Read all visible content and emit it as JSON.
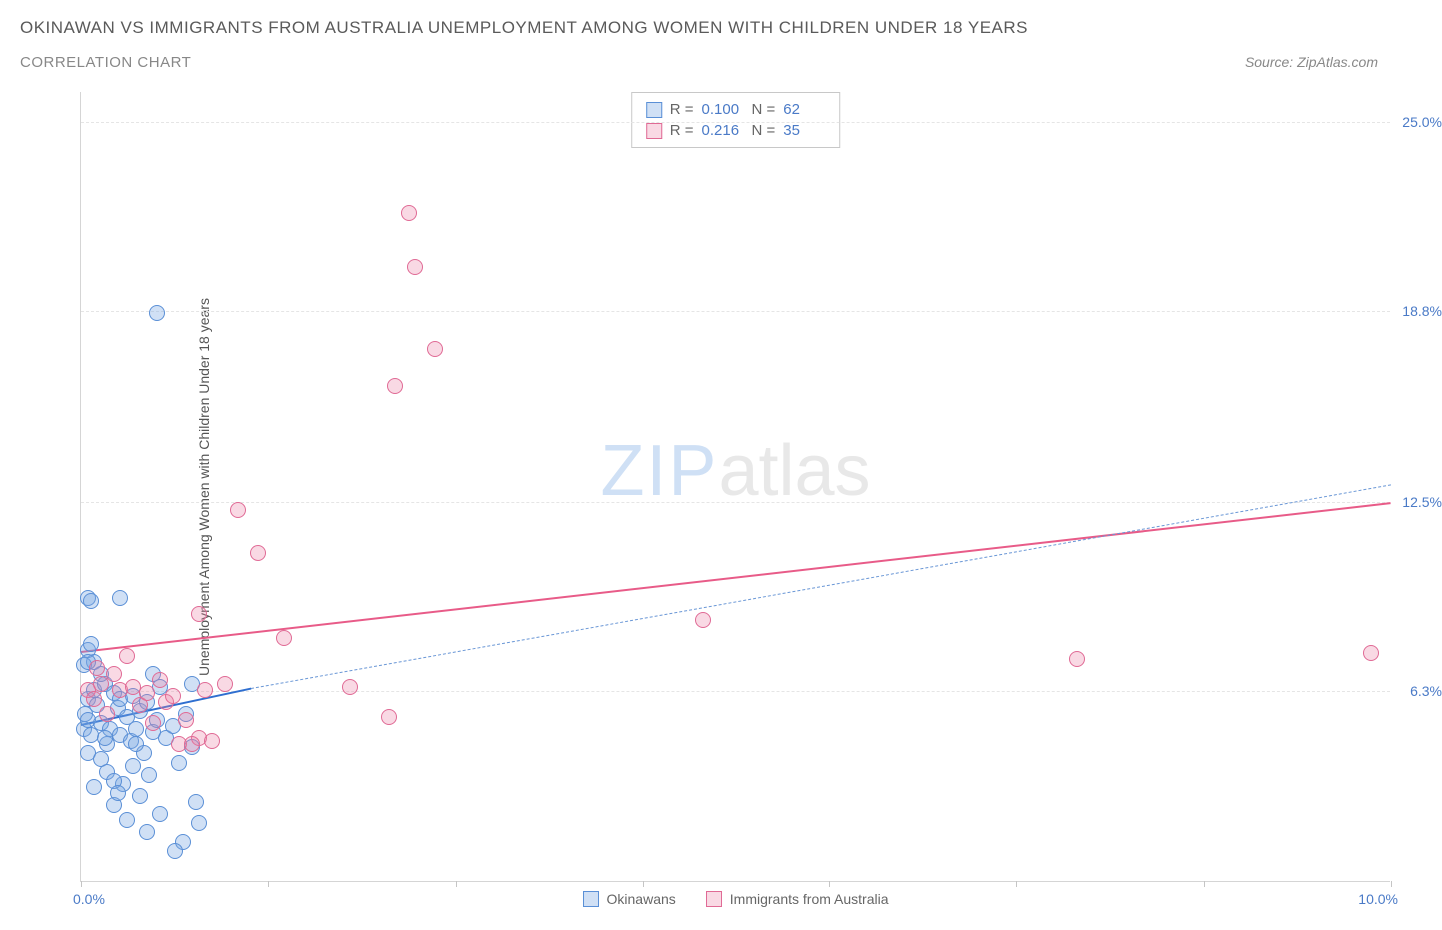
{
  "header": {
    "title": "OKINAWAN VS IMMIGRANTS FROM AUSTRALIA UNEMPLOYMENT AMONG WOMEN WITH CHILDREN UNDER 18 YEARS",
    "subtitle": "CORRELATION CHART",
    "source": "Source: ZipAtlas.com"
  },
  "chart": {
    "type": "scatter",
    "background_color": "#ffffff",
    "grid_color": "#e5e5e5",
    "axis_color": "#d5d5d5",
    "tick_label_color": "#4a7ac7",
    "y_label": "Unemployment Among Women with Children Under 18 years",
    "y_label_color": "#555555",
    "y_label_fontsize": 14,
    "xlim": [
      0,
      10
    ],
    "ylim": [
      0,
      26
    ],
    "x_ticks": [
      0,
      1.43,
      2.86,
      4.29,
      5.71,
      7.14,
      8.57,
      10
    ],
    "x_tick_labels": {
      "0": "0.0%",
      "10": "10.0%"
    },
    "y_grid": [
      {
        "value": 6.3,
        "label": "6.3%"
      },
      {
        "value": 12.5,
        "label": "12.5%"
      },
      {
        "value": 18.8,
        "label": "18.8%"
      },
      {
        "value": 25.0,
        "label": "25.0%"
      }
    ],
    "series": [
      {
        "name": "Okinawans",
        "marker_fill": "rgba(120,165,225,0.35)",
        "marker_stroke": "#5a8fd6",
        "marker_radius": 8,
        "trend_color": "#2f6fd0",
        "trend_dash_color": "#6a97d6",
        "trend_solid": {
          "x1": 0,
          "y1": 5.2,
          "x2": 1.3,
          "y2": 6.4
        },
        "trend_dash": {
          "x1": 1.3,
          "y1": 6.4,
          "x2": 10,
          "y2": 13.1
        },
        "stats": {
          "R": "0.100",
          "N": "62"
        },
        "points": [
          [
            0.02,
            5.0
          ],
          [
            0.03,
            5.5
          ],
          [
            0.05,
            6.0
          ],
          [
            0.05,
            4.2
          ],
          [
            0.05,
            5.3
          ],
          [
            0.08,
            4.8
          ],
          [
            0.1,
            6.3
          ],
          [
            0.1,
            7.2
          ],
          [
            0.1,
            3.1
          ],
          [
            0.12,
            5.8
          ],
          [
            0.15,
            5.2
          ],
          [
            0.15,
            4.0
          ],
          [
            0.18,
            6.5
          ],
          [
            0.2,
            4.5
          ],
          [
            0.2,
            3.6
          ],
          [
            0.22,
            5.0
          ],
          [
            0.25,
            6.2
          ],
          [
            0.25,
            2.5
          ],
          [
            0.28,
            5.7
          ],
          [
            0.3,
            4.8
          ],
          [
            0.3,
            6.0
          ],
          [
            0.32,
            3.2
          ],
          [
            0.35,
            5.4
          ],
          [
            0.35,
            2.0
          ],
          [
            0.38,
            4.6
          ],
          [
            0.4,
            6.1
          ],
          [
            0.4,
            3.8
          ],
          [
            0.42,
            5.0
          ],
          [
            0.45,
            2.8
          ],
          [
            0.45,
            5.6
          ],
          [
            0.48,
            4.2
          ],
          [
            0.5,
            5.9
          ],
          [
            0.5,
            1.6
          ],
          [
            0.52,
            3.5
          ],
          [
            0.55,
            4.9
          ],
          [
            0.58,
            5.3
          ],
          [
            0.6,
            6.4
          ],
          [
            0.6,
            2.2
          ],
          [
            0.05,
            9.3
          ],
          [
            0.08,
            9.2
          ],
          [
            0.3,
            9.3
          ],
          [
            0.65,
            4.7
          ],
          [
            0.7,
            5.1
          ],
          [
            0.75,
            3.9
          ],
          [
            0.78,
            1.3
          ],
          [
            0.8,
            5.5
          ],
          [
            0.85,
            4.4
          ],
          [
            0.88,
            2.6
          ],
          [
            0.85,
            6.5
          ],
          [
            0.72,
            1.0
          ],
          [
            0.9,
            1.9
          ],
          [
            0.05,
            7.6
          ],
          [
            0.08,
            7.8
          ],
          [
            0.02,
            7.1
          ],
          [
            0.05,
            7.2
          ],
          [
            0.55,
            6.8
          ],
          [
            0.58,
            18.7
          ],
          [
            0.42,
            4.5
          ],
          [
            0.15,
            6.8
          ],
          [
            0.18,
            4.7
          ],
          [
            0.25,
            3.3
          ],
          [
            0.28,
            2.9
          ]
        ]
      },
      {
        "name": "Immigrants from Australia",
        "marker_fill": "rgba(235,130,165,0.30)",
        "marker_stroke": "#e06a95",
        "marker_radius": 8,
        "trend_color": "#e85b88",
        "trend_solid": {
          "x1": 0,
          "y1": 7.6,
          "x2": 10,
          "y2": 12.5
        },
        "stats": {
          "R": "0.216",
          "N": "35"
        },
        "points": [
          [
            0.05,
            6.3
          ],
          [
            0.1,
            6.0
          ],
          [
            0.12,
            7.0
          ],
          [
            0.15,
            6.5
          ],
          [
            0.2,
            5.5
          ],
          [
            0.25,
            6.8
          ],
          [
            0.3,
            6.3
          ],
          [
            0.35,
            7.4
          ],
          [
            0.4,
            6.4
          ],
          [
            0.45,
            5.8
          ],
          [
            0.5,
            6.2
          ],
          [
            0.55,
            5.2
          ],
          [
            0.6,
            6.6
          ],
          [
            0.65,
            5.9
          ],
          [
            0.7,
            6.1
          ],
          [
            0.75,
            4.5
          ],
          [
            0.8,
            5.3
          ],
          [
            0.9,
            4.7
          ],
          [
            0.95,
            6.3
          ],
          [
            1.0,
            4.6
          ],
          [
            0.85,
            4.5
          ],
          [
            0.9,
            8.8
          ],
          [
            1.1,
            6.5
          ],
          [
            1.2,
            12.2
          ],
          [
            1.35,
            10.8
          ],
          [
            1.55,
            8.0
          ],
          [
            2.05,
            6.4
          ],
          [
            2.35,
            5.4
          ],
          [
            2.4,
            16.3
          ],
          [
            2.5,
            22.0
          ],
          [
            2.7,
            17.5
          ],
          [
            2.55,
            20.2
          ],
          [
            4.75,
            8.6
          ],
          [
            7.6,
            7.3
          ],
          [
            9.85,
            7.5
          ]
        ]
      }
    ],
    "bottom_legend": [
      {
        "swatch_fill": "rgba(120,165,225,0.35)",
        "swatch_stroke": "#5a8fd6",
        "label": "Okinawans"
      },
      {
        "swatch_fill": "rgba(235,130,165,0.30)",
        "swatch_stroke": "#e06a95",
        "label": "Immigrants from Australia"
      }
    ],
    "watermark": {
      "zip": "ZIP",
      "atlas": "atlas"
    }
  }
}
